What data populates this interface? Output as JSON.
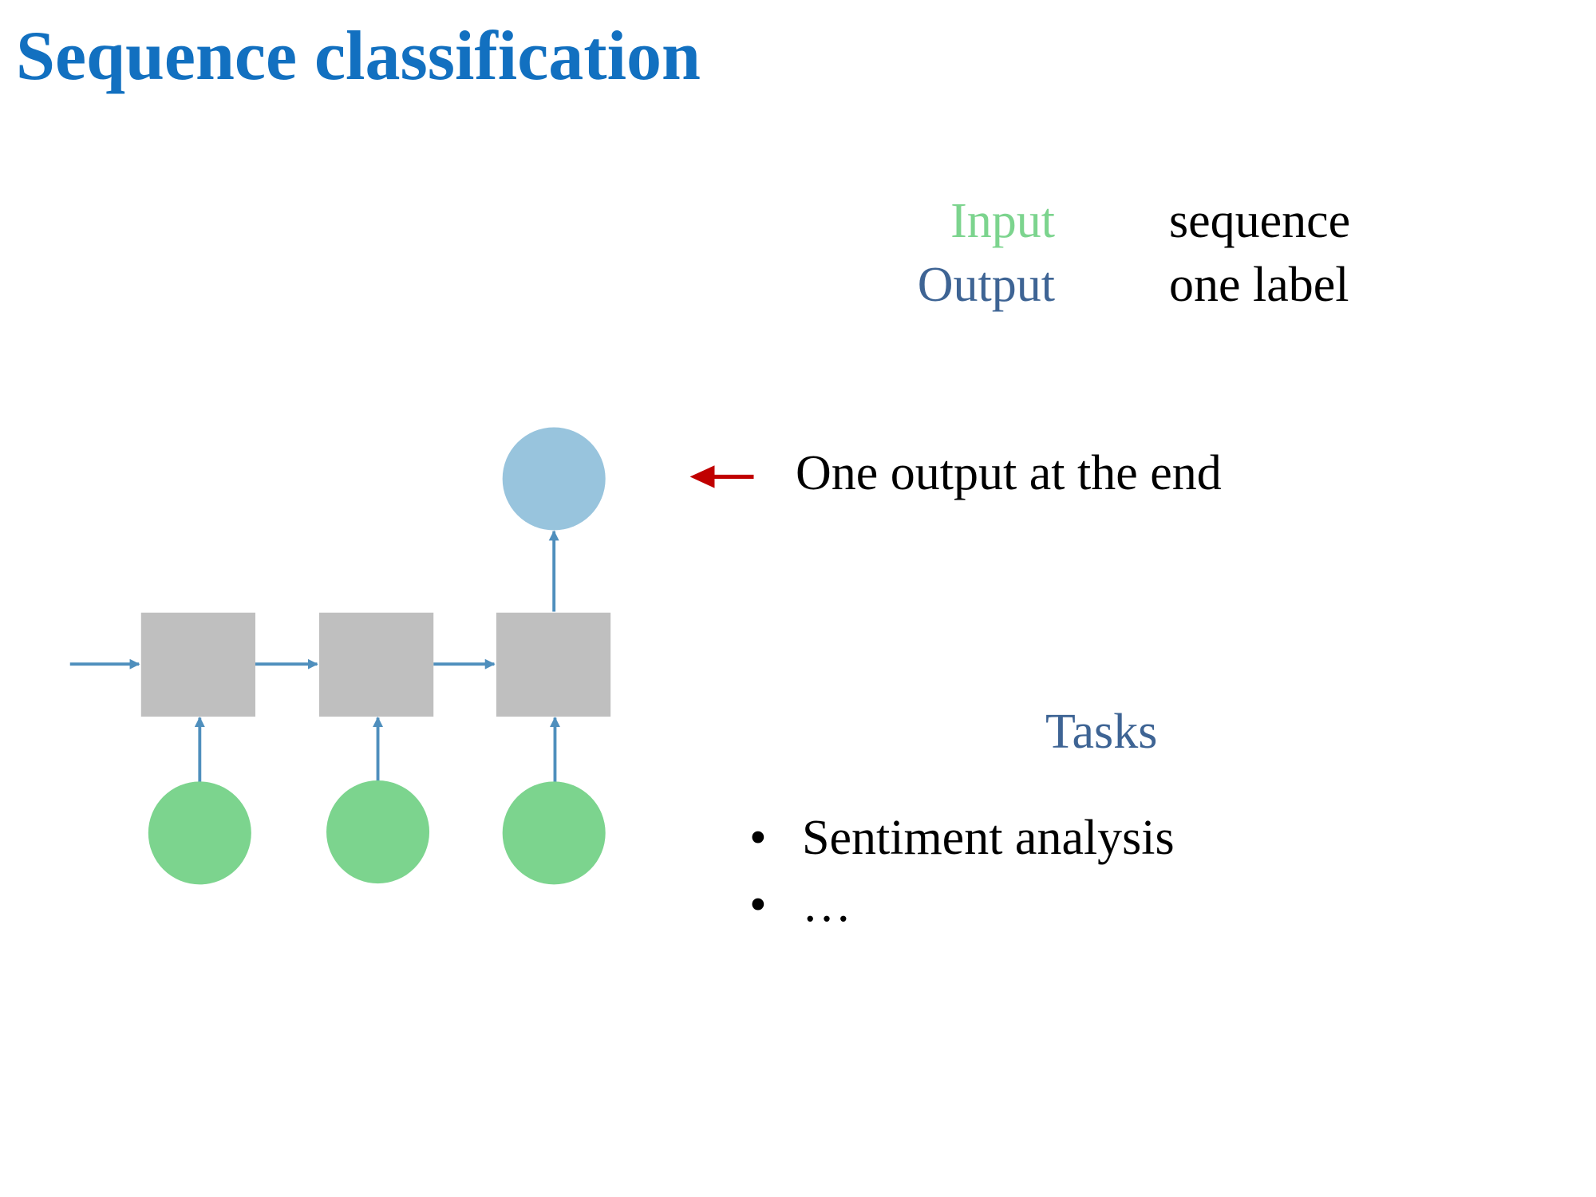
{
  "title": "Sequence classification",
  "io": {
    "input_label": "Input",
    "input_value": "sequence",
    "output_label": "Output",
    "output_value": "one label"
  },
  "annotation": "One output at the end",
  "tasks": {
    "heading": "Tasks",
    "items": [
      "Sentiment analysis",
      "…"
    ]
  },
  "diagram": {
    "rnn_cells": 3,
    "input_nodes": 3,
    "output_nodes": 1
  },
  "colors": {
    "title": "#1270c0",
    "input": "#7cd48e",
    "output_label": "#3e6494",
    "output_node": "#98c4dd",
    "cell": "#bfbfbf",
    "arrow": "#4f8fbd",
    "pointer_arrow": "#c00000"
  }
}
